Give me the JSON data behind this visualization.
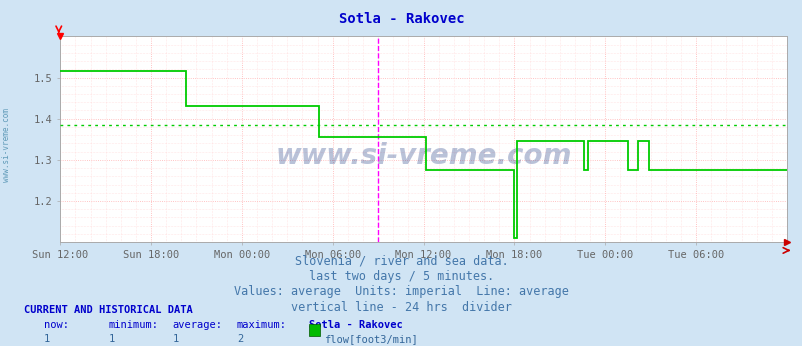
{
  "title": "Sotla - Rakovec",
  "title_color": "#0000cc",
  "bg_color": "#d0e4f4",
  "plot_bg_color": "#ffffff",
  "grid_color": "#ffb0b0",
  "tick_label_color": "#666666",
  "xlim": [
    0,
    576
  ],
  "ylim": [
    1.1,
    1.6
  ],
  "yticks": [
    1.2,
    1.3,
    1.4,
    1.5
  ],
  "xtick_positions": [
    0,
    72,
    144,
    216,
    288,
    360,
    432,
    504
  ],
  "xtick_labels": [
    "Sun 12:00",
    "Sun 18:00",
    "Mon 00:00",
    "Mon 06:00",
    "Mon 12:00",
    "Mon 18:00",
    "Tue 00:00",
    "Tue 06:00"
  ],
  "average_line_y": 1.385,
  "average_line_color": "#00cc00",
  "vertical_line_x": 252,
  "vertical_line_color": "#ff00ff",
  "line_color": "#00cc00",
  "line_width": 1.3,
  "watermark_text": "www.si-vreme.com",
  "watermark_color": "#1a3580",
  "watermark_alpha": 0.3,
  "footer_lines": [
    "Slovenia / river and sea data.",
    "last two days / 5 minutes.",
    "Values: average  Units: imperial  Line: average",
    "vertical line - 24 hrs  divider"
  ],
  "footer_color": "#4477aa",
  "footer_fontsize": 8.5,
  "current_data_label": "CURRENT AND HISTORICAL DATA",
  "row_labels": [
    "now:",
    "minimum:",
    "average:",
    "maximum:",
    "Sotla - Rakovec"
  ],
  "row_values": [
    "1",
    "1",
    "1",
    "2"
  ],
  "legend_color": "#00bb00",
  "legend_label": "flow[foot3/min]",
  "left_label": "www.si-vreme.com",
  "left_label_color": "#4488aa",
  "x_data": [
    0,
    100,
    100,
    205,
    205,
    252,
    252,
    290,
    290,
    360,
    360,
    362,
    362,
    395,
    395,
    415,
    415,
    418,
    418,
    450,
    450,
    458,
    458,
    467,
    467,
    576
  ],
  "y_data": [
    1.515,
    1.515,
    1.43,
    1.43,
    1.355,
    1.355,
    1.355,
    1.355,
    1.275,
    1.275,
    1.11,
    1.11,
    1.345,
    1.345,
    1.345,
    1.345,
    1.275,
    1.275,
    1.345,
    1.345,
    1.275,
    1.275,
    1.345,
    1.345,
    1.275,
    1.275
  ]
}
